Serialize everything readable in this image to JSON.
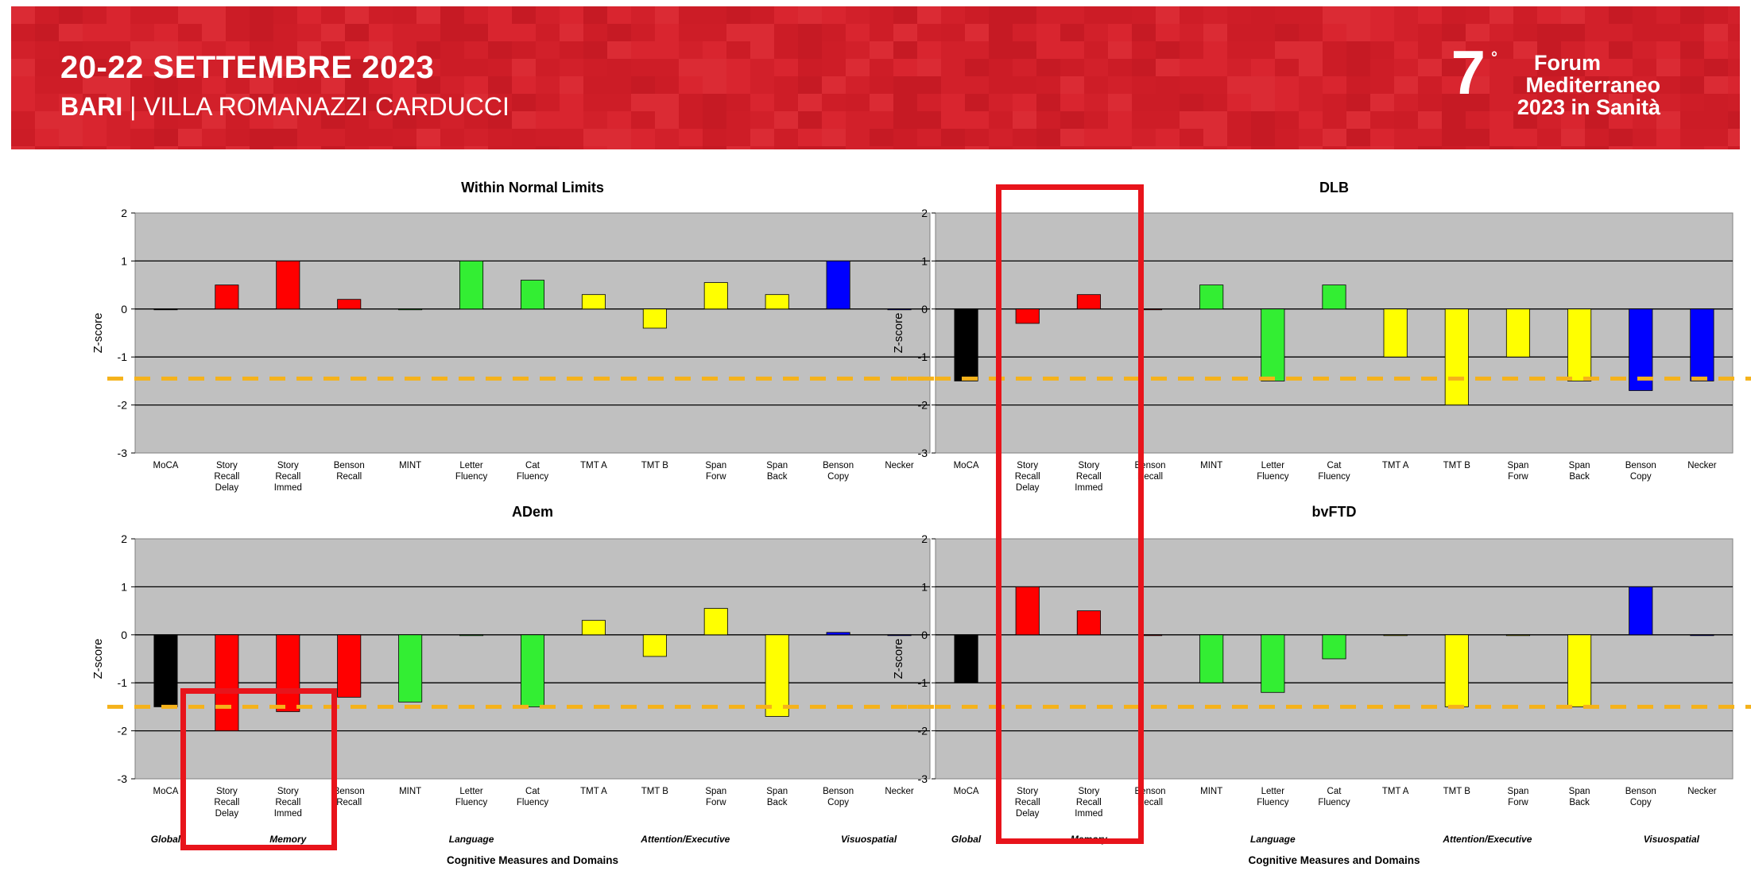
{
  "header": {
    "dates": "20-22 SETTEMBRE 2023",
    "city": "BARI",
    "separator": "|",
    "venue": "VILLA ROMANAZZI CARDUCCI",
    "forum_number": "7",
    "forum_degree": "°",
    "forum_line1": "Forum",
    "forum_line2": "Mediterraneo",
    "forum_line3": "2023 in Sanità",
    "colors": {
      "banner": "#d4202a",
      "text": "#ffffff"
    }
  },
  "chart_data": [
    {
      "type": "bar",
      "title": "Within Normal Limits",
      "ylabel": "Z-score",
      "ylim": [
        -3,
        2
      ],
      "yticks": [
        "-3",
        "-2",
        "-1",
        "0",
        "1",
        "2"
      ],
      "categories": [
        [
          "MoCA"
        ],
        [
          "Story",
          "Recall",
          "Delay"
        ],
        [
          "Story",
          "Recall",
          "Immed"
        ],
        [
          "Benson",
          "Recall"
        ],
        [
          "MINT"
        ],
        [
          "Letter",
          "Fluency"
        ],
        [
          "Cat",
          "Fluency"
        ],
        [
          "TMT A"
        ],
        [
          "TMT B"
        ],
        [
          "Span",
          "Forw"
        ],
        [
          "Span",
          "Back"
        ],
        [
          "Benson",
          "Copy"
        ],
        [
          "Necker"
        ]
      ],
      "values": [
        0,
        0.5,
        1,
        0.2,
        0,
        1,
        0.6,
        0.3,
        -0.4,
        0.55,
        0.3,
        1,
        0
      ],
      "colors": [
        "#000000",
        "#ff0000",
        "#ff0000",
        "#ff0000",
        "#33ee33",
        "#33ee33",
        "#33ee33",
        "#ffff00",
        "#ffff00",
        "#ffff00",
        "#ffff00",
        "#0000ff",
        "#0000ff"
      ],
      "threshold": -1.45,
      "threshold_color": "#f5b21a",
      "grid": true,
      "domains": [],
      "xlabel": ""
    },
    {
      "type": "bar",
      "title": "DLB",
      "ylabel": "Z-score",
      "ylim": [
        -3,
        2
      ],
      "yticks": [
        "-3",
        "-2",
        "-1",
        "0",
        "1",
        "2"
      ],
      "categories": [
        [
          "MoCA"
        ],
        [
          "Story",
          "Recall",
          "Delay"
        ],
        [
          "Story",
          "Recall",
          "Immed"
        ],
        [
          "Benson",
          "Recall"
        ],
        [
          "MINT"
        ],
        [
          "Letter",
          "Fluency"
        ],
        [
          "Cat",
          "Fluency"
        ],
        [
          "TMT A"
        ],
        [
          "TMT B"
        ],
        [
          "Span",
          "Forw"
        ],
        [
          "Span",
          "Back"
        ],
        [
          "Benson",
          "Copy"
        ],
        [
          "Necker"
        ]
      ],
      "values": [
        -1.5,
        -0.3,
        0.3,
        0,
        0.5,
        -1.5,
        0.5,
        -1,
        -2,
        -1,
        -1.5,
        -1.7,
        -1.5
      ],
      "colors": [
        "#000000",
        "#ff0000",
        "#ff0000",
        "#ff0000",
        "#33ee33",
        "#33ee33",
        "#33ee33",
        "#ffff00",
        "#ffff00",
        "#ffff00",
        "#ffff00",
        "#0000ff",
        "#0000ff"
      ],
      "threshold": -1.45,
      "threshold_color": "#f5b21a",
      "grid": true,
      "domains": [],
      "xlabel": ""
    },
    {
      "type": "bar",
      "title": "ADem",
      "ylabel": "Z-score",
      "ylim": [
        -3,
        2
      ],
      "yticks": [
        "-3",
        "-2",
        "-1",
        "0",
        "1",
        "2"
      ],
      "categories": [
        [
          "MoCA"
        ],
        [
          "Story",
          "Recall",
          "Delay"
        ],
        [
          "Story",
          "Recall",
          "Immed"
        ],
        [
          "Benson",
          "Recall"
        ],
        [
          "MINT"
        ],
        [
          "Letter",
          "Fluency"
        ],
        [
          "Cat",
          "Fluency"
        ],
        [
          "TMT A"
        ],
        [
          "TMT B"
        ],
        [
          "Span",
          "Forw"
        ],
        [
          "Span",
          "Back"
        ],
        [
          "Benson",
          "Copy"
        ],
        [
          "Necker"
        ]
      ],
      "values": [
        -1.5,
        -2,
        -1.6,
        -1.3,
        -1.4,
        0,
        -1.5,
        0.3,
        -0.45,
        0.55,
        -1.7,
        0.05,
        0
      ],
      "colors": [
        "#000000",
        "#ff0000",
        "#ff0000",
        "#ff0000",
        "#33ee33",
        "#33ee33",
        "#33ee33",
        "#ffff00",
        "#ffff00",
        "#ffff00",
        "#ffff00",
        "#0000ff",
        "#0000ff"
      ],
      "threshold": -1.5,
      "threshold_color": "#f5b21a",
      "grid": true,
      "domains": [
        {
          "label": "Global",
          "from": 0,
          "to": 0
        },
        {
          "label": "Memory",
          "from": 1,
          "to": 3
        },
        {
          "label": "Language",
          "from": 4,
          "to": 6
        },
        {
          "label": "Attention/Executive",
          "from": 7,
          "to": 10
        },
        {
          "label": "Visuospatial",
          "from": 11,
          "to": 12
        }
      ],
      "xlabel": "Cognitive Measures and Domains"
    },
    {
      "type": "bar",
      "title": "bvFTD",
      "ylabel": "Z-score",
      "ylim": [
        -3,
        2
      ],
      "yticks": [
        "-3",
        "-2",
        "-1",
        "0",
        "1",
        "2"
      ],
      "categories": [
        [
          "MoCA"
        ],
        [
          "Story",
          "Recall",
          "Delay"
        ],
        [
          "Story",
          "Recall",
          "Immed"
        ],
        [
          "Benson",
          "Recall"
        ],
        [
          "MINT"
        ],
        [
          "Letter",
          "Fluency"
        ],
        [
          "Cat",
          "Fluency"
        ],
        [
          "TMT A"
        ],
        [
          "TMT B"
        ],
        [
          "Span",
          "Forw"
        ],
        [
          "Span",
          "Back"
        ],
        [
          "Benson",
          "Copy"
        ],
        [
          "Necker"
        ]
      ],
      "values": [
        -1,
        1,
        0.5,
        0,
        -1,
        -1.2,
        -0.5,
        0,
        -1.5,
        0,
        -1.5,
        1,
        0
      ],
      "colors": [
        "#000000",
        "#ff0000",
        "#ff0000",
        "#ff0000",
        "#33ee33",
        "#33ee33",
        "#33ee33",
        "#ffff00",
        "#ffff00",
        "#ffff00",
        "#ffff00",
        "#0000ff",
        "#0000ff"
      ],
      "threshold": -1.5,
      "threshold_color": "#f5b21a",
      "grid": true,
      "domains": [
        {
          "label": "Global",
          "from": 0,
          "to": 0
        },
        {
          "label": "Memory",
          "from": 1,
          "to": 3
        },
        {
          "label": "Language",
          "from": 4,
          "to": 6
        },
        {
          "label": "Attention/Executive",
          "from": 7,
          "to": 10
        },
        {
          "label": "Visuospatial",
          "from": 11,
          "to": 12
        }
      ],
      "xlabel": "Cognitive Measures and Domains"
    }
  ]
}
